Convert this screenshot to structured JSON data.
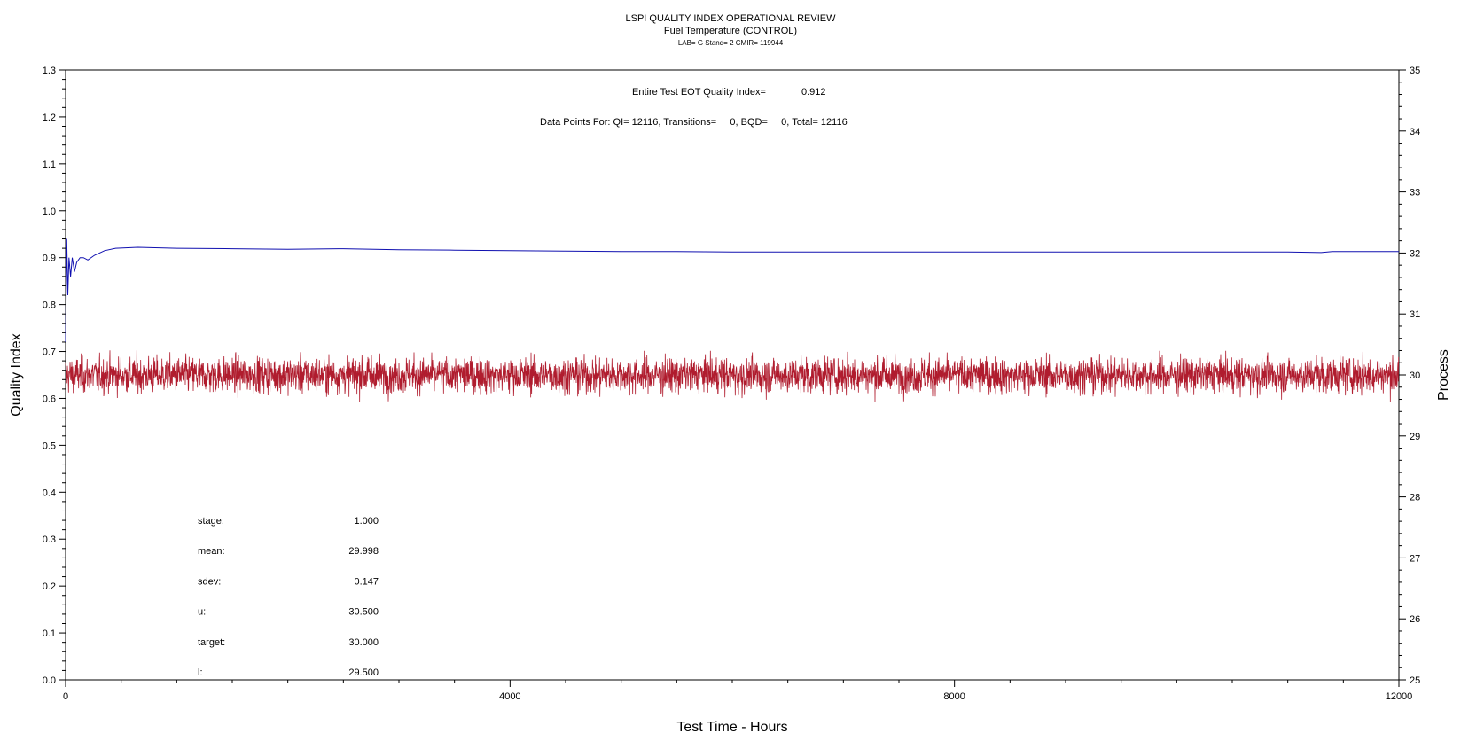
{
  "chart_data": {
    "type": "line",
    "title": "LSPI QUALITY INDEX OPERATIONAL REVIEW",
    "subtitle": "Fuel Temperature (CONTROL)",
    "subtitle2": "LAB= G Stand= 2 CMIR= 119944",
    "xlabel": "Test Time - Hours",
    "ylabel_left": "Quality Index",
    "ylabel_right": "Process",
    "xlim": [
      0,
      12000
    ],
    "ylim_left": [
      0.0,
      1.3
    ],
    "ylim_right": [
      25,
      35
    ],
    "x_ticks": [
      "0",
      "4000",
      "8000",
      "12000"
    ],
    "y_left_ticks": [
      "0.0",
      "0.1",
      "0.2",
      "0.3",
      "0.4",
      "0.5",
      "0.6",
      "0.7",
      "0.8",
      "0.9",
      "1.0",
      "1.1",
      "1.2",
      "1.3"
    ],
    "y_right_ticks": [
      "25",
      "26",
      "27",
      "28",
      "29",
      "30",
      "31",
      "32",
      "33",
      "34",
      "35"
    ],
    "annotations": {
      "eot_label": "Entire Test EOT Quality Index=",
      "eot_value": "0.912",
      "points_label": "Data Points For: QI= 12116, Transitions=     0, BQD=     0, Total= 12116"
    },
    "stats": [
      {
        "label": "stage:",
        "value": "1.000"
      },
      {
        "label": "mean:",
        "value": "29.998"
      },
      {
        "label": "sdev:",
        "value": "0.147"
      },
      {
        "label": "u:",
        "value": "30.500"
      },
      {
        "label": "target:",
        "value": "30.000"
      },
      {
        "label": "l:",
        "value": "29.500"
      }
    ],
    "series": [
      {
        "axis": "left",
        "color": "#1010b0",
        "points": [
          [
            0,
            0.72
          ],
          [
            10,
            0.94
          ],
          [
            20,
            0.82
          ],
          [
            30,
            0.9
          ],
          [
            45,
            0.86
          ],
          [
            60,
            0.9
          ],
          [
            80,
            0.87
          ],
          [
            100,
            0.89
          ],
          [
            130,
            0.9
          ],
          [
            160,
            0.9
          ],
          [
            200,
            0.895
          ],
          [
            260,
            0.905
          ],
          [
            350,
            0.915
          ],
          [
            450,
            0.92
          ],
          [
            650,
            0.922
          ],
          [
            1000,
            0.92
          ],
          [
            1500,
            0.919
          ],
          [
            2000,
            0.918
          ],
          [
            2500,
            0.919
          ],
          [
            3000,
            0.917
          ],
          [
            3500,
            0.916
          ],
          [
            4000,
            0.915
          ],
          [
            4500,
            0.914
          ],
          [
            5000,
            0.913
          ],
          [
            5500,
            0.913
          ],
          [
            6000,
            0.912
          ],
          [
            7000,
            0.912
          ],
          [
            8000,
            0.912
          ],
          [
            9000,
            0.912
          ],
          [
            10000,
            0.912
          ],
          [
            11000,
            0.912
          ],
          [
            11300,
            0.911
          ],
          [
            11400,
            0.913
          ],
          [
            12000,
            0.913
          ]
        ]
      },
      {
        "axis": "right",
        "color": "#b01c2e",
        "n": 12116,
        "mean": 29.998,
        "sdev": 0.147,
        "min": 29.55,
        "max": 30.75
      }
    ]
  }
}
